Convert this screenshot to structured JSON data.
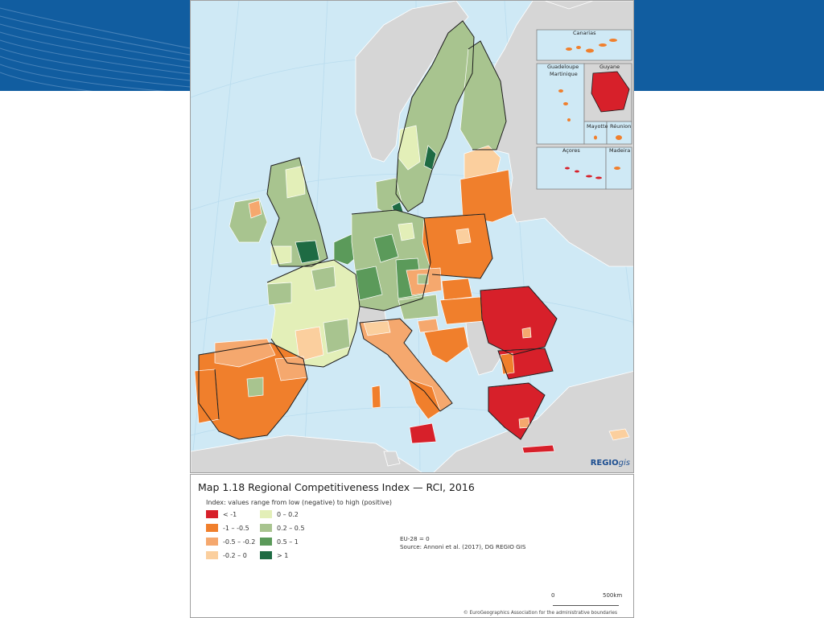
{
  "map": {
    "title": "Map 1.18 Regional Competitiveness Index — RCI, 2016",
    "subtitle": "Index: values range from low (negative) to high (positive)",
    "logo": {
      "main": "REGIO",
      "suffix": "gis"
    },
    "insets": {
      "canarias": "Canarias",
      "guadeloupe": "Guadeloupe",
      "martinique": "Martinique",
      "guyane": "Guyane",
      "mayotte": "Mayotte",
      "reunion": "Réunion",
      "acores": "Açores",
      "madeira": "Madeira"
    },
    "legend": [
      {
        "label": "< -1",
        "color": "#d7202a"
      },
      {
        "label": "-1 – -0.5",
        "color": "#f07f2c"
      },
      {
        "label": "-0.5 – -0.2",
        "color": "#f5a86e"
      },
      {
        "label": "-0.2 – 0",
        "color": "#fbcf9e"
      },
      {
        "label": "0 – 0.2",
        "color": "#e3efb8"
      },
      {
        "label": "0.2 – 0.5",
        "color": "#a8c48f"
      },
      {
        "label": "0.5 – 1",
        "color": "#5b9a5a"
      },
      {
        "label": "> 1",
        "color": "#1e6b43"
      }
    ],
    "note": "EU-28 = 0",
    "source": "Source: Annoni et al. (2017), DG REGIO GIS",
    "scale": {
      "start": "0",
      "end": "500",
      "unit": "km"
    },
    "copyright": "© EuroGeographics Association for the administrative boundaries"
  },
  "colors": {
    "banner": "#115da0",
    "sea": "#cfe9f5",
    "non_eu_land": "#d6d6d6",
    "border": "#1a1a1a"
  }
}
